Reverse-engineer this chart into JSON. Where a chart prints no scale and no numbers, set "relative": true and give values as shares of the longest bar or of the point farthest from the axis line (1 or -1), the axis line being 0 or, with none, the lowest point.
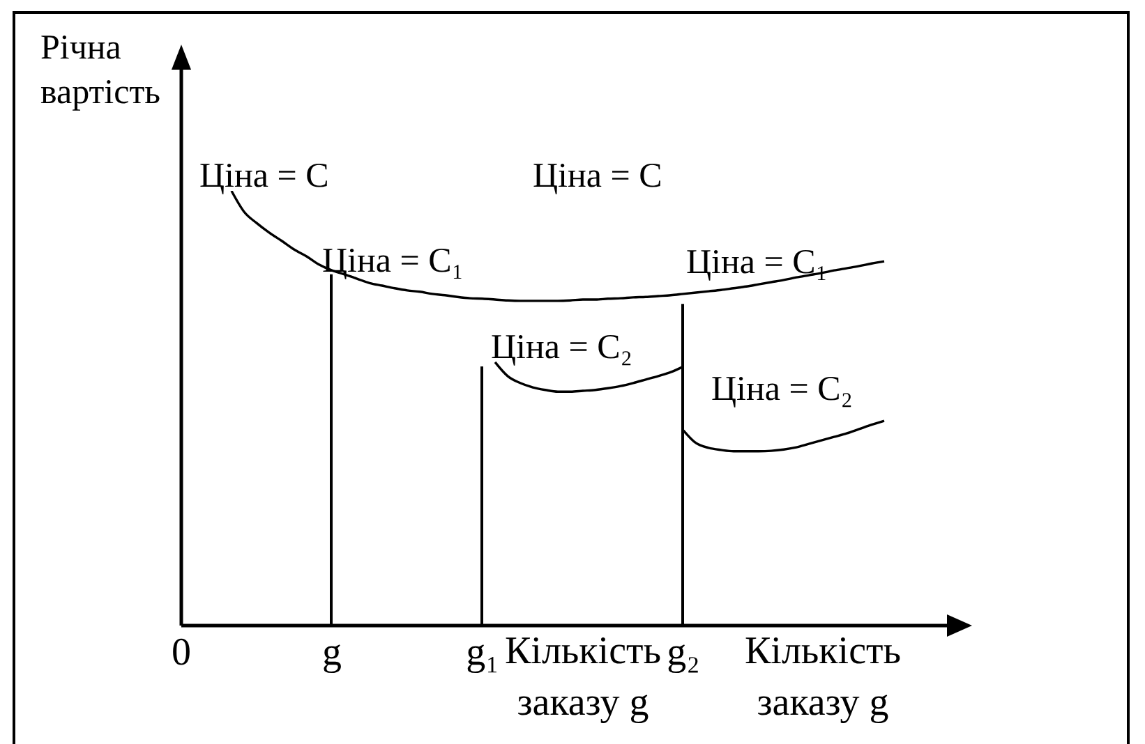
{
  "chart_data": {
    "type": "line",
    "relative": true,
    "ylabel": "Річна вартість",
    "xlabel": "Кількість заказу g",
    "annotations": [
      "Ціна = С",
      "Ціна = С",
      "Ціна = С₁",
      "Ціна = С₁",
      "Ціна = С₂",
      "Ціна = С₂",
      "Кількість заказу g"
    ],
    "categories": [
      "0",
      null,
      null,
      null,
      null,
      null,
      null,
      null,
      null,
      null,
      null,
      null,
      "g",
      null,
      null,
      null,
      null,
      null,
      null,
      null,
      null,
      null,
      null,
      null,
      "g₁",
      null,
      null,
      null,
      null,
      null,
      null,
      null,
      null,
      null,
      null,
      null,
      null,
      null,
      null,
      null,
      "g₂",
      null,
      null,
      null,
      null,
      null,
      null,
      null,
      null,
      null,
      null,
      null,
      null,
      null,
      null,
      null,
      null,
      null,
      null,
      null,
      null,
      null
    ],
    "series": [
      {
        "type": "bar",
        "color": "#000000",
        "values": [
          null,
          null,
          null,
          null,
          null,
          null,
          null,
          null,
          null,
          null,
          null,
          null,
          0.808,
          null,
          null,
          null,
          null,
          null,
          null,
          null,
          null,
          null,
          null,
          null,
          0.596,
          null,
          null,
          null,
          null,
          null,
          null,
          null,
          null,
          null,
          null,
          null,
          null,
          null,
          null,
          null,
          0.74,
          null,
          null,
          null,
          null,
          null,
          null,
          null,
          null,
          null,
          null,
          null,
          null,
          null,
          null,
          null,
          null,
          null,
          null,
          null,
          null,
          null
        ]
      },
      {
        "color": "#000000",
        "values": [
          null,
          null,
          null,
          null,
          1.0,
          0.952,
          0.926,
          0.904,
          0.885,
          0.865,
          0.849,
          0.83,
          0.817,
          0.808,
          0.798,
          0.788,
          0.782,
          0.776,
          0.771,
          0.768,
          0.763,
          0.76,
          0.756,
          0.753,
          0.752,
          0.75,
          0.748,
          0.747,
          0.747,
          0.747,
          0.747,
          0.748,
          0.75,
          0.75,
          0.752,
          0.753,
          0.755,
          0.756,
          0.758,
          0.76,
          0.763,
          0.766,
          0.769,
          0.772,
          0.776,
          0.78,
          0.785,
          0.79,
          0.795,
          0.801,
          0.806,
          0.811,
          0.817,
          0.822,
          0.827,
          0.833,
          0.838,
          null,
          null,
          null,
          null,
          null
        ]
      },
      {
        "color": "#000000",
        "values": [
          null,
          null,
          null,
          null,
          null,
          null,
          null,
          null,
          null,
          null,
          null,
          null,
          null,
          null,
          null,
          null,
          null,
          null,
          null,
          null,
          null,
          null,
          null,
          null,
          null,
          0.606,
          0.574,
          0.558,
          0.548,
          0.542,
          0.538,
          0.538,
          0.54,
          0.542,
          0.546,
          0.551,
          0.558,
          0.566,
          0.574,
          0.583,
          0.596,
          null,
          null,
          null,
          null,
          null,
          null,
          null,
          null,
          null,
          null,
          null,
          null,
          null,
          null,
          null,
          null,
          null,
          null,
          null,
          null,
          null
        ]
      },
      {
        "color": "#000000",
        "values": [
          null,
          null,
          null,
          null,
          null,
          null,
          null,
          null,
          null,
          null,
          null,
          null,
          null,
          null,
          null,
          null,
          null,
          null,
          null,
          null,
          null,
          null,
          null,
          null,
          null,
          null,
          null,
          null,
          null,
          null,
          null,
          null,
          null,
          null,
          null,
          null,
          null,
          null,
          null,
          null,
          0.449,
          0.42,
          0.409,
          0.404,
          0.401,
          0.401,
          0.401,
          0.402,
          0.405,
          0.41,
          0.418,
          0.426,
          0.434,
          0.442,
          0.452,
          0.462,
          0.471,
          null,
          null,
          null,
          null,
          null
        ]
      }
    ]
  }
}
